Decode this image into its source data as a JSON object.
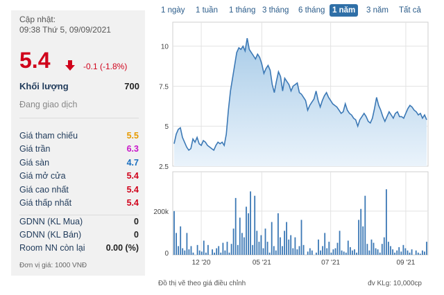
{
  "quote": {
    "updated_label": "Cập nhật:",
    "updated_time": "09:38 Thứ 5, 09/09/2021",
    "price": "5.4",
    "change": "-0.1 (-1.8%)",
    "volume_label": "Khối lượng",
    "volume_value": "700",
    "status": "Đang giao dịch",
    "rows": [
      {
        "label": "Giá tham chiếu",
        "value": "5.5",
        "color": "#e69a00"
      },
      {
        "label": "Giá trần",
        "value": "6.3",
        "color": "#c815c8"
      },
      {
        "label": "Giá sàn",
        "value": "4.7",
        "color": "#1a6fbf"
      },
      {
        "label": "Giá mở cửa",
        "value": "5.4",
        "color": "#d0021b"
      },
      {
        "label": "Giá cao nhất",
        "value": "5.4",
        "color": "#d0021b"
      },
      {
        "label": "Giá thấp nhất",
        "value": "5.4",
        "color": "#d0021b"
      }
    ],
    "foreign": [
      {
        "label": "GDNN (KL Mua)",
        "value": "0"
      },
      {
        "label": "GDNN (KL Bán)",
        "value": "0"
      },
      {
        "label": "Room NN còn lại",
        "value": "0.00 (%)"
      }
    ],
    "unit_note": "Đơn vị giá: 1000 VNĐ"
  },
  "tabs": [
    {
      "label": "1 ngày",
      "active": false
    },
    {
      "label": "1 tuần",
      "active": false
    },
    {
      "label": "1 tháng",
      "active": false
    },
    {
      "label": "3 tháng",
      "active": false
    },
    {
      "label": "6 tháng",
      "active": false
    },
    {
      "label": "1 năm",
      "active": true
    },
    {
      "label": "3 năm",
      "active": false
    },
    {
      "label": "Tất cả",
      "active": false
    }
  ],
  "chart_data": {
    "type": "area",
    "price_yticks": [
      2.5,
      5,
      7.5,
      10
    ],
    "price_ylim": [
      2.5,
      11.5
    ],
    "volume_yticks": [
      "0",
      "200k"
    ],
    "volume_ylim": [
      0,
      380000
    ],
    "x_ticks": [
      "12 '20",
      "05 '21",
      "07 '21",
      "09 '21"
    ],
    "price_series": [
      3.9,
      4.5,
      4.8,
      4.9,
      4.3,
      4.0,
      3.7,
      3.5,
      3.6,
      4.2,
      4.0,
      4.3,
      3.9,
      3.8,
      4.1,
      4.0,
      3.8,
      3.7,
      3.6,
      3.5,
      3.8,
      4.0,
      3.9,
      4.0,
      3.8,
      4.5,
      6.0,
      7.2,
      8.0,
      8.8,
      9.6,
      9.9,
      9.8,
      10.0,
      9.7,
      10.5,
      9.8,
      9.6,
      9.4,
      9.2,
      9.5,
      9.3,
      8.9,
      8.3,
      8.6,
      8.8,
      8.5,
      7.6,
      7.1,
      7.8,
      8.4,
      8.1,
      7.2,
      8.0,
      7.8,
      7.6,
      7.2,
      7.5,
      7.6,
      7.7,
      7.1,
      7.0,
      6.8,
      6.6,
      6.0,
      6.3,
      6.5,
      6.7,
      7.2,
      6.6,
      6.2,
      6.6,
      6.9,
      7.1,
      6.8,
      6.6,
      6.4,
      6.3,
      6.2,
      6.0,
      5.8,
      5.9,
      6.4,
      6.0,
      5.8,
      5.7,
      5.5,
      5.4,
      5.0,
      5.4,
      5.6,
      5.8,
      5.6,
      5.3,
      5.2,
      5.5,
      6.1,
      6.8,
      6.3,
      6.0,
      5.6,
      5.3,
      5.6,
      5.9,
      5.7,
      5.5,
      5.8,
      5.9,
      5.6,
      5.6,
      5.5,
      5.8,
      6.1,
      6.3,
      6.2,
      6.0,
      5.9,
      5.7,
      5.8,
      5.5,
      5.7,
      5.4
    ],
    "volume_series": [
      200000,
      100000,
      40000,
      130000,
      30000,
      20000,
      100000,
      25000,
      40000,
      10000,
      0,
      45000,
      20000,
      15000,
      65000,
      10000,
      45000,
      0,
      25000,
      10000,
      30000,
      40000,
      10000,
      55000,
      20000,
      60000,
      10000,
      50000,
      120000,
      260000,
      45000,
      170000,
      100000,
      80000,
      220000,
      190000,
      290000,
      45000,
      270000,
      110000,
      60000,
      90000,
      30000,
      120000,
      60000,
      10000,
      150000,
      40000,
      20000,
      190000,
      80000,
      40000,
      110000,
      150000,
      70000,
      90000,
      30000,
      80000,
      25000,
      40000,
      160000,
      45000,
      0,
      15000,
      30000,
      20000,
      0,
      10000,
      70000,
      20000,
      40000,
      100000,
      30000,
      60000,
      10000,
      25000,
      30000,
      55000,
      110000,
      20000,
      15000,
      10000,
      65000,
      35000,
      20000,
      25000,
      10000,
      160000,
      210000,
      130000,
      270000,
      50000,
      20000,
      70000,
      55000,
      30000,
      25000,
      10000,
      50000,
      80000,
      300000,
      60000,
      40000,
      25000,
      10000,
      20000,
      35000,
      15000,
      45000,
      30000,
      20000,
      10000,
      25000,
      0,
      20000,
      10000,
      5000,
      20000,
      15000,
      60000
    ],
    "series_color": "#3b78b5",
    "fill_top_color": "#a9cce8",
    "fill_bottom_color": "#eaf3fb",
    "footer_note": "Đồ thị vẽ theo giá điều chỉnh",
    "footer_unit": "đv KLg: 10,000cp"
  }
}
